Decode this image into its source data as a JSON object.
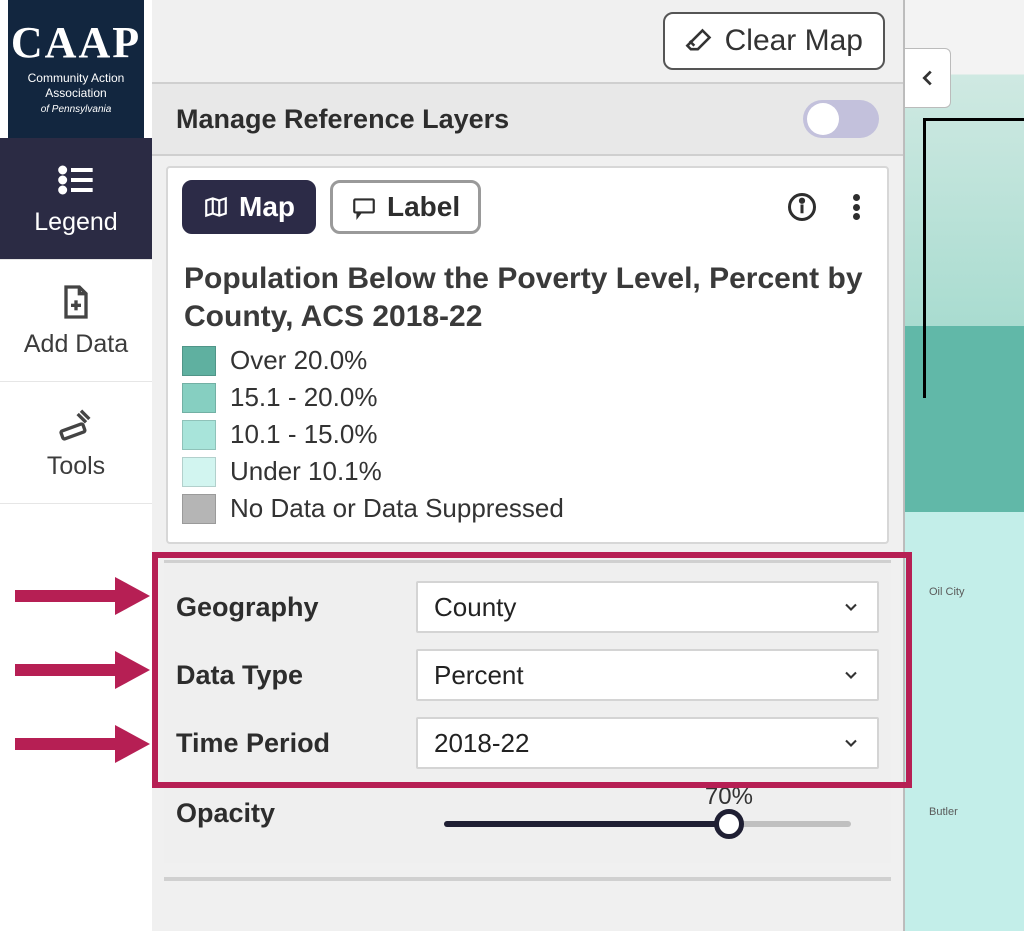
{
  "logo": {
    "main": "CAAP",
    "line1": "Community Action",
    "line2": "Association",
    "line3": "of Pennsylvania"
  },
  "sidebar": {
    "legend": "Legend",
    "add_data": "Add Data",
    "tools": "Tools"
  },
  "topbar": {
    "clear_map": "Clear Map"
  },
  "ref_layers": {
    "title": "Manage Reference Layers",
    "enabled": false
  },
  "view_toggle": {
    "map": "Map",
    "label": "Label"
  },
  "layer": {
    "title": "Population Below the Poverty Level, Percent by County, ACS 2018-22",
    "legend": [
      {
        "label": "Over 20.0%",
        "color": "#5fb0a0"
      },
      {
        "label": "15.1 - 20.0%",
        "color": "#86cfc1"
      },
      {
        "label": "10.1 - 15.0%",
        "color": "#a8e4da"
      },
      {
        "label": "Under 10.1%",
        "color": "#d2f5f0"
      },
      {
        "label": "No Data or Data Suppressed",
        "color": "#b5b5b5"
      }
    ]
  },
  "controls": {
    "geography": {
      "label": "Geography",
      "value": "County"
    },
    "data_type": {
      "label": "Data Type",
      "value": "Percent"
    },
    "time": {
      "label": "Time Period",
      "value": "2018-22"
    },
    "opacity": {
      "label": "Opacity",
      "value": 70,
      "display": "70%"
    }
  },
  "annotation": {
    "highlight_color": "#b61f54"
  },
  "map_labels": {
    "a": "Oil City",
    "b": "Butler"
  }
}
